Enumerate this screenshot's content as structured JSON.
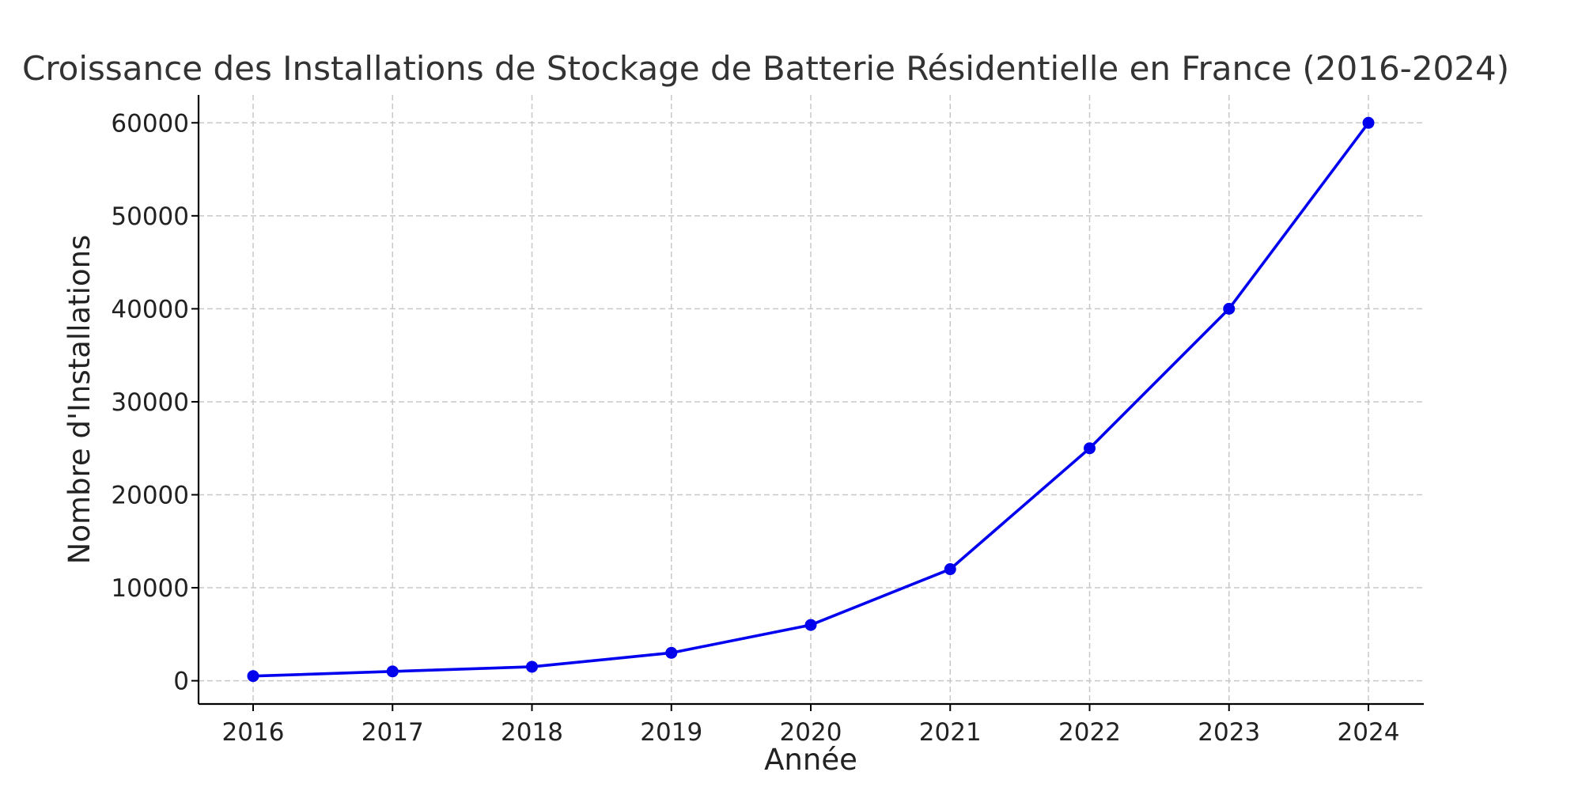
{
  "chart_data": {
    "type": "line",
    "title": "Croissance des Installations de Stockage de Batterie Résidentielle en France (2016-2024)",
    "xlabel": "Année",
    "ylabel": "Nombre d'Installations",
    "x": [
      "2016",
      "2017",
      "2018",
      "2019",
      "2020",
      "2021",
      "2022",
      "2023",
      "2024"
    ],
    "series": [
      {
        "values": [
          500,
          1000,
          1500,
          3000,
          6000,
          12000,
          25000,
          40000,
          60000
        ],
        "color": "#0000ee",
        "marker": "circle"
      }
    ],
    "yticks": [
      0,
      10000,
      20000,
      30000,
      40000,
      50000,
      60000
    ],
    "ylim": [
      -2500,
      63000
    ],
    "grid": true,
    "colors": {
      "line": "#0000ee",
      "grid": "#c8c8c8",
      "title": "#333333"
    }
  }
}
